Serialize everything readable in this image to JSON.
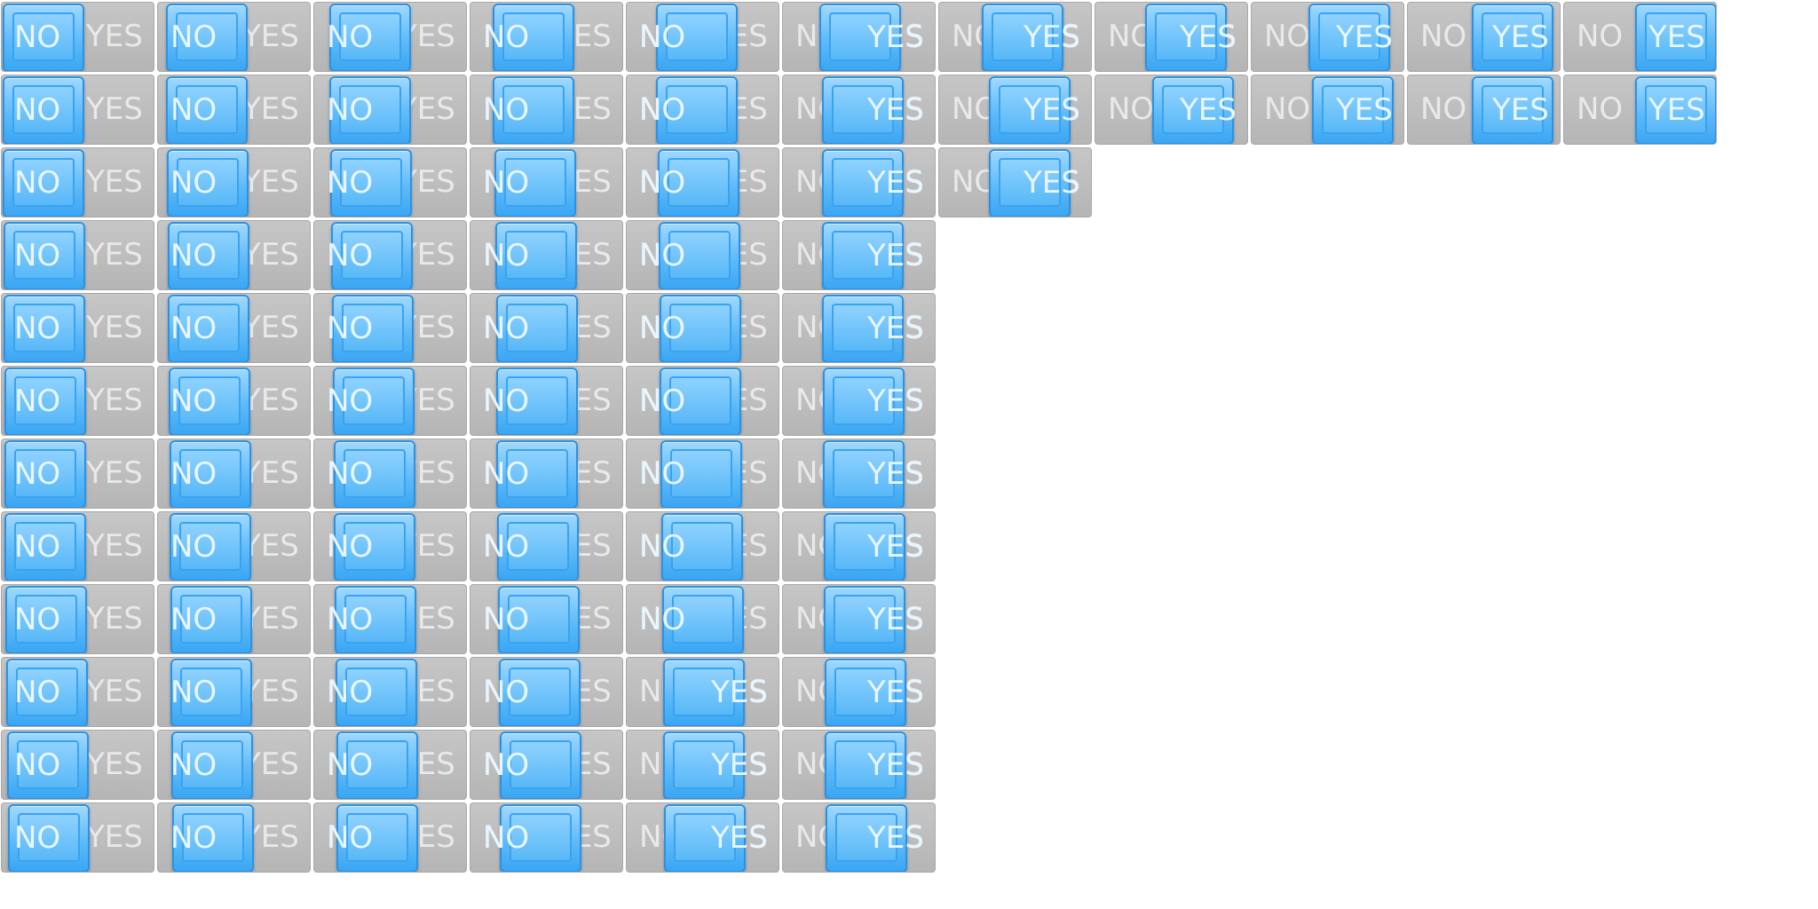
{
  "toggle": {
    "off_label": "NO",
    "on_label": "YES"
  },
  "colors": {
    "track": "#bdbdbd",
    "thumb": "#5bb8f7",
    "text": "#eaeaea"
  },
  "rows": [
    [
      0.0,
      0.1,
      0.2,
      0.3,
      0.4,
      0.5,
      0.6,
      0.7,
      0.8,
      0.9,
      1.0
    ],
    [
      0.0,
      0.1,
      0.2,
      0.3,
      0.4,
      0.55,
      0.7,
      0.8,
      0.85,
      0.9,
      1.0
    ],
    [
      0.0,
      0.12,
      0.22,
      0.33,
      0.43,
      0.55,
      0.7
    ],
    [
      0.01,
      0.13,
      0.23,
      0.34,
      0.44,
      0.55
    ],
    [
      0.01,
      0.13,
      0.24,
      0.35,
      0.45,
      0.55
    ],
    [
      0.02,
      0.14,
      0.25,
      0.36,
      0.46,
      0.56
    ],
    [
      0.02,
      0.15,
      0.26,
      0.36,
      0.47,
      0.56
    ],
    [
      0.03,
      0.15,
      0.27,
      0.37,
      0.48,
      0.57
    ],
    [
      0.04,
      0.16,
      0.28,
      0.38,
      0.49,
      0.57
    ],
    [
      0.05,
      0.17,
      0.29,
      0.39,
      0.5,
      0.58
    ],
    [
      0.06,
      0.18,
      0.3,
      0.4,
      0.51,
      0.58
    ],
    [
      0.07,
      0.19,
      0.31,
      0.41,
      0.52,
      0.59
    ]
  ]
}
